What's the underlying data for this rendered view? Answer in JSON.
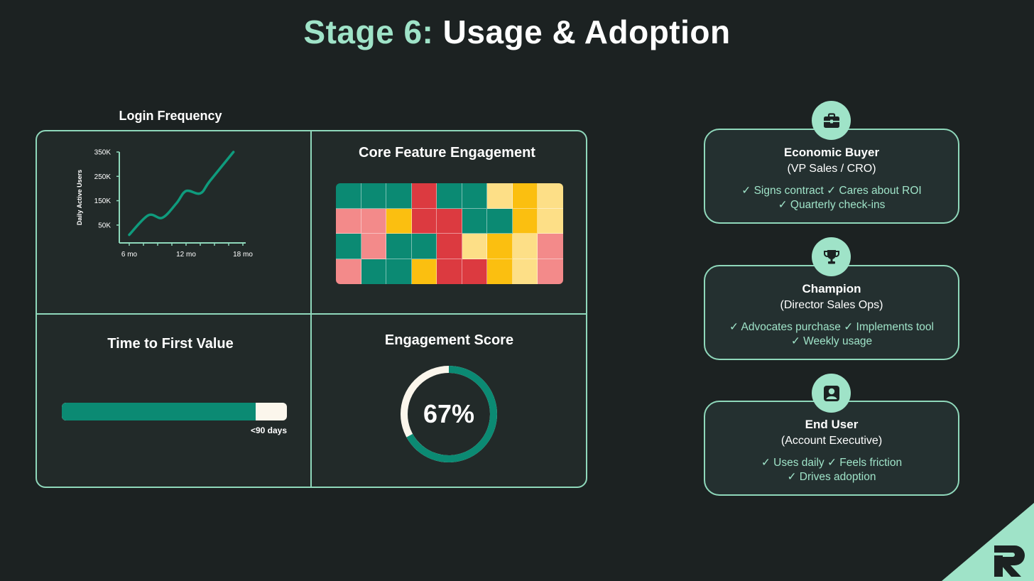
{
  "title": {
    "accent": "Stage 6:",
    "main": "Usage & Adoption"
  },
  "colors": {
    "accent": "#9fe3c8",
    "teal": "#0b8a73",
    "background": "#1c2222"
  },
  "login_frequency": {
    "label": "Login Frequency",
    "chart_data": {
      "type": "line",
      "ylabel": "Daily Active Users",
      "yticks": [
        "350K",
        "250K",
        "150K",
        "50K"
      ],
      "xticks": [
        "6 mo",
        "12 mo",
        "18 mo"
      ],
      "ylim": [
        0,
        350000
      ],
      "xlim": [
        6,
        18
      ],
      "x": [
        6,
        8,
        9.5,
        11,
        12,
        13.5,
        14.5,
        17
      ],
      "values": [
        10000,
        90000,
        80000,
        140000,
        190000,
        180000,
        230000,
        350000
      ]
    }
  },
  "core_feature": {
    "title": "Core Feature Engagement",
    "chart_data": {
      "type": "heatmap",
      "palette": {
        "teal": "#0b8a73",
        "pink": "#f38a8a",
        "red": "#dc3a40",
        "gold": "#fbbf10",
        "yellow": "#fddf87"
      },
      "cells": [
        [
          "teal",
          "teal",
          "teal",
          "red",
          "teal",
          "teal",
          "yellow",
          "gold",
          "yellow"
        ],
        [
          "pink",
          "pink",
          "gold",
          "red",
          "red",
          "teal",
          "teal",
          "gold",
          "yellow"
        ],
        [
          "teal",
          "pink",
          "teal",
          "teal",
          "red",
          "yellow",
          "gold",
          "yellow",
          "pink"
        ],
        [
          "pink",
          "teal",
          "teal",
          "gold",
          "red",
          "red",
          "gold",
          "yellow",
          "pink"
        ]
      ]
    }
  },
  "time_to_value": {
    "title": "Time to First Value",
    "progress": 0.86,
    "label": "<90 days"
  },
  "engagement_score": {
    "title": "Engagement Score",
    "value": 0.67,
    "label": "67%"
  },
  "personas": [
    {
      "icon": "briefcase-icon",
      "role": "Economic Buyer",
      "sub": "(VP Sales / CRO)",
      "traits_line1": "✓ Signs contract ✓ Cares about ROI",
      "traits_line2": "✓ Quarterly check-ins"
    },
    {
      "icon": "trophy-icon",
      "role": "Champion",
      "sub": "(Director Sales Ops)",
      "traits_line1": "✓ Advocates purchase ✓ Implements tool",
      "traits_line2": "✓ Weekly usage"
    },
    {
      "icon": "user-icon",
      "role": "End User",
      "sub": "(Account Executive)",
      "traits_line1": "✓ Uses daily ✓ Feels friction",
      "traits_line2": "✓ Drives adoption"
    }
  ]
}
